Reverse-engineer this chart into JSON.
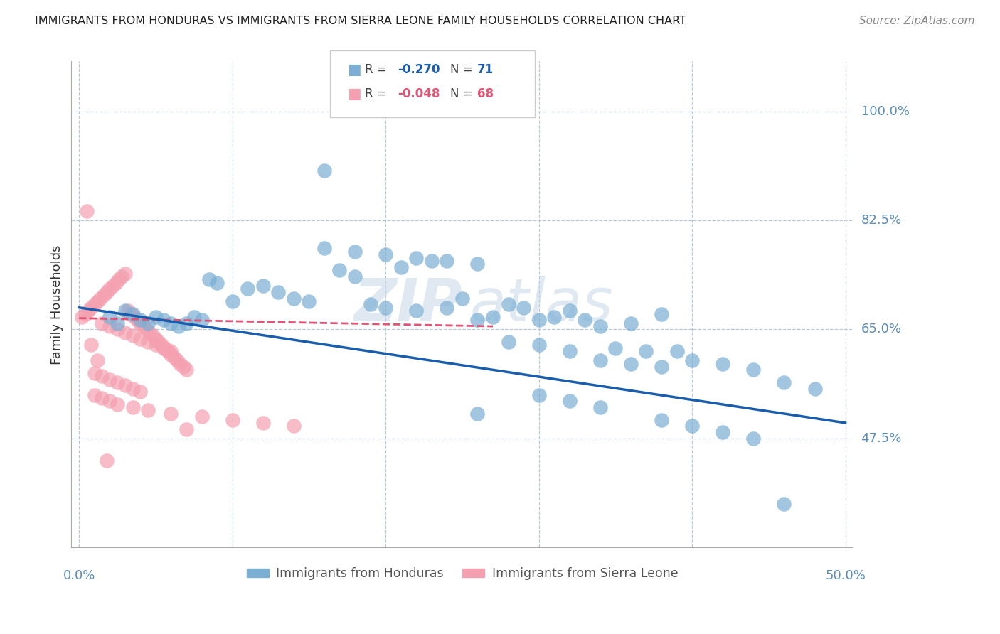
{
  "title": "IMMIGRANTS FROM HONDURAS VS IMMIGRANTS FROM SIERRA LEONE FAMILY HOUSEHOLDS CORRELATION CHART",
  "source": "Source: ZipAtlas.com",
  "ylabel": "Family Households",
  "ytick_labels": [
    "100.0%",
    "82.5%",
    "65.0%",
    "47.5%"
  ],
  "ytick_values": [
    1.0,
    0.825,
    0.65,
    0.475
  ],
  "xmin": 0.0,
  "xmax": 0.5,
  "ymin": 0.3,
  "ymax": 1.08,
  "legend_r1": "R = -0.270",
  "legend_n1": "N = 71",
  "legend_r2": "R = -0.048",
  "legend_n2": "N = 68",
  "blue_color": "#7BAFD4",
  "pink_color": "#F4A0B0",
  "line_blue": "#1A5DAD",
  "line_pink": "#E05575",
  "axis_label_color": "#5B8DB8",
  "title_color": "#222222",
  "blue_line_x": [
    0.0,
    0.5
  ],
  "blue_line_y": [
    0.685,
    0.5
  ],
  "pink_line_x": [
    0.0,
    0.27
  ],
  "pink_line_y": [
    0.668,
    0.655
  ],
  "blue_scatter_x": [
    0.02,
    0.025,
    0.03,
    0.035,
    0.04,
    0.045,
    0.05,
    0.055,
    0.06,
    0.065,
    0.07,
    0.075,
    0.08,
    0.085,
    0.09,
    0.1,
    0.11,
    0.12,
    0.13,
    0.14,
    0.15,
    0.16,
    0.17,
    0.18,
    0.19,
    0.2,
    0.21,
    0.22,
    0.23,
    0.24,
    0.25,
    0.26,
    0.27,
    0.28,
    0.29,
    0.3,
    0.31,
    0.32,
    0.33,
    0.34,
    0.35,
    0.36,
    0.37,
    0.38,
    0.39,
    0.4,
    0.42,
    0.44,
    0.46,
    0.48,
    0.16,
    0.18,
    0.2,
    0.22,
    0.24,
    0.26,
    0.28,
    0.3,
    0.32,
    0.34,
    0.36,
    0.38,
    0.3,
    0.32,
    0.34,
    0.26,
    0.38,
    0.4,
    0.42,
    0.44,
    0.46
  ],
  "blue_scatter_y": [
    0.67,
    0.66,
    0.68,
    0.675,
    0.665,
    0.66,
    0.67,
    0.665,
    0.66,
    0.655,
    0.66,
    0.67,
    0.665,
    0.73,
    0.725,
    0.695,
    0.715,
    0.72,
    0.71,
    0.7,
    0.695,
    0.905,
    0.745,
    0.735,
    0.69,
    0.685,
    0.75,
    0.68,
    0.76,
    0.685,
    0.7,
    0.665,
    0.67,
    0.69,
    0.685,
    0.665,
    0.67,
    0.68,
    0.665,
    0.655,
    0.62,
    0.66,
    0.615,
    0.675,
    0.615,
    0.6,
    0.595,
    0.585,
    0.565,
    0.555,
    0.78,
    0.775,
    0.77,
    0.765,
    0.76,
    0.755,
    0.63,
    0.625,
    0.615,
    0.6,
    0.595,
    0.59,
    0.545,
    0.535,
    0.525,
    0.515,
    0.505,
    0.495,
    0.485,
    0.475,
    0.37
  ],
  "pink_scatter_x": [
    0.002,
    0.004,
    0.006,
    0.008,
    0.01,
    0.012,
    0.014,
    0.016,
    0.018,
    0.02,
    0.022,
    0.024,
    0.026,
    0.028,
    0.03,
    0.032,
    0.034,
    0.036,
    0.038,
    0.04,
    0.042,
    0.044,
    0.046,
    0.048,
    0.05,
    0.052,
    0.054,
    0.056,
    0.058,
    0.06,
    0.062,
    0.064,
    0.066,
    0.068,
    0.07,
    0.015,
    0.02,
    0.025,
    0.03,
    0.035,
    0.04,
    0.045,
    0.05,
    0.055,
    0.06,
    0.01,
    0.015,
    0.02,
    0.025,
    0.03,
    0.035,
    0.04,
    0.01,
    0.015,
    0.02,
    0.025,
    0.035,
    0.045,
    0.06,
    0.08,
    0.1,
    0.12,
    0.14,
    0.07,
    0.005,
    0.008,
    0.012,
    0.018
  ],
  "pink_scatter_y": [
    0.67,
    0.675,
    0.68,
    0.685,
    0.69,
    0.695,
    0.7,
    0.705,
    0.71,
    0.715,
    0.72,
    0.725,
    0.73,
    0.735,
    0.74,
    0.68,
    0.675,
    0.67,
    0.665,
    0.66,
    0.655,
    0.65,
    0.645,
    0.64,
    0.635,
    0.63,
    0.625,
    0.62,
    0.615,
    0.61,
    0.605,
    0.6,
    0.595,
    0.59,
    0.585,
    0.66,
    0.655,
    0.65,
    0.645,
    0.64,
    0.635,
    0.63,
    0.625,
    0.62,
    0.615,
    0.58,
    0.575,
    0.57,
    0.565,
    0.56,
    0.555,
    0.55,
    0.545,
    0.54,
    0.535,
    0.53,
    0.525,
    0.52,
    0.515,
    0.51,
    0.505,
    0.5,
    0.495,
    0.49,
    0.84,
    0.625,
    0.6,
    0.44
  ]
}
